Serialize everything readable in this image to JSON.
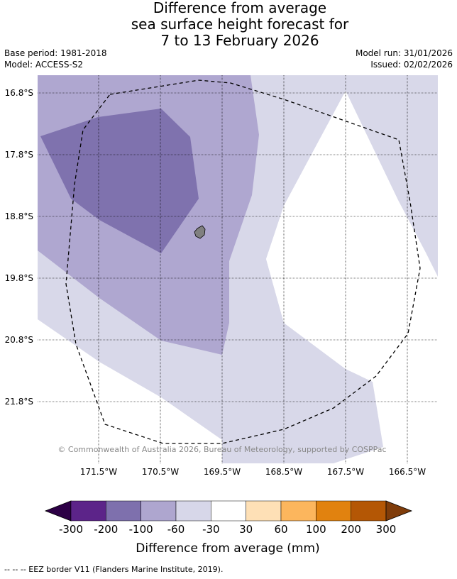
{
  "title_lines": [
    "Difference from average",
    "sea surface height forecast for",
    "7 to 13 February 2026"
  ],
  "meta": {
    "base_period": "Base period: 1981-2018",
    "model": "Model: ACCESS-S2",
    "model_run": "Model run: 31/01/2026",
    "issued": "Issued: 02/02/2026"
  },
  "map": {
    "lat_ticks": [
      "16.8°S",
      "17.8°S",
      "18.8°S",
      "19.8°S",
      "20.8°S",
      "21.8°S"
    ],
    "lon_ticks": [
      "171.5°W",
      "170.5°W",
      "169.5°W",
      "168.5°W",
      "167.5°W",
      "166.5°W"
    ],
    "copyright": "© Commonwealth of Australia 2026, Bureau of Meteorology, supported by COSPPac",
    "colors": {
      "band_-100_-60": "#afa7d0",
      "band_-60_-30": "#d8d8e9",
      "band_-200_-100": "#7f72ae",
      "island": "#808080"
    }
  },
  "colorbar": {
    "ticks": [
      "-300",
      "-200",
      "-100",
      "-60",
      "-30",
      "30",
      "60",
      "100",
      "200",
      "300"
    ],
    "colors": [
      "#2d0046",
      "#5c2489",
      "#7e70ad",
      "#aea6cf",
      "#d7d7e9",
      "#ffffff",
      "#fee0b6",
      "#fcb65d",
      "#e1820f",
      "#b45705",
      "#7f3c0a"
    ],
    "title": "Difference from average (mm)"
  },
  "footer": "--  --  -- EEZ border V11 (Flanders Marine Institute, 2019)."
}
